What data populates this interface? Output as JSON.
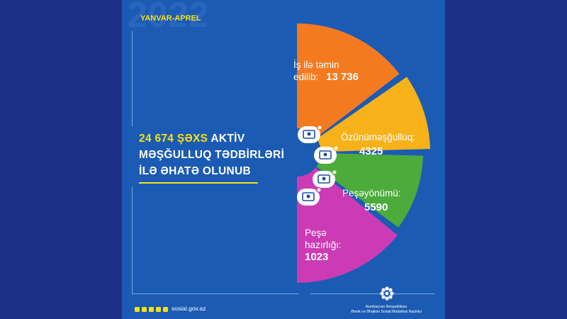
{
  "header": {
    "year": "2022",
    "period": "YANVAR-APREL"
  },
  "headline": {
    "highlight": "24 674 ŞƏXS",
    "rest_line1": " AKTİV",
    "line2": "MƏŞĞULLUQ TƏDBİRLƏRİ",
    "line3": "İLƏ ƏHATƏ OLUNUB"
  },
  "chart_data": {
    "type": "pie",
    "series": [
      {
        "label_lines": [
          "İş ilə təmin",
          "edilib:"
        ],
        "value_text": "13 736",
        "value": 13736,
        "color": "#f47a20"
      },
      {
        "label_lines": [
          "Özünüməşğulluq:"
        ],
        "value_text": "4325",
        "value": 4325,
        "color": "#f7b21a"
      },
      {
        "label_lines": [
          "Peşəyönümü:"
        ],
        "value_text": "5590",
        "value": 5590,
        "color": "#4cab3b"
      },
      {
        "label_lines": [
          "Peşə",
          "hazırlığı:"
        ],
        "value_text": "1023",
        "value": 1023,
        "color": "#cc3bb5"
      }
    ]
  },
  "footer": {
    "website": "sosial.gov.az",
    "ministry_line1": "Azərbaycan Respublikası",
    "ministry_line2": "Əmək və Əhalinin Sosial Müdafiəsi Nazirliyi",
    "social_icons": [
      "facebook-icon",
      "instagram-icon",
      "twitter-icon",
      "linkedin-icon",
      "youtube-icon"
    ]
  },
  "colors": {
    "background": "#1b5bb4",
    "accent": "#f6e016"
  }
}
